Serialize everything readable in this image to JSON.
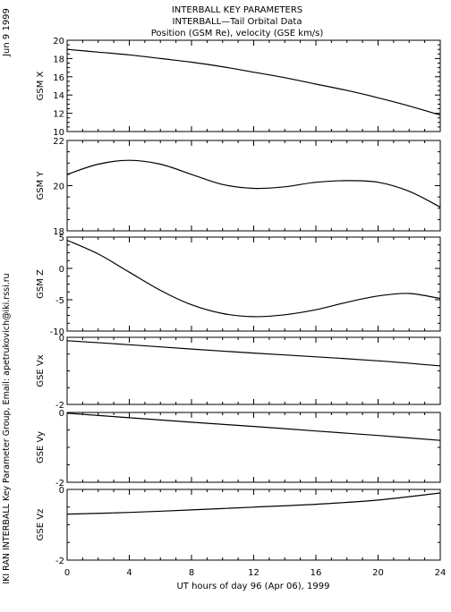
{
  "header": {
    "title_line1": "INTERBALL KEY PARAMETERS",
    "title_line2": "INTERBALL—Tail Orbital Data",
    "title_line3": "Position (GSM Re), velocity (GSE km/s)"
  },
  "side_text": {
    "date": "Jun  9 1999",
    "credit": "IKI RAN INTERBALL Key Parameter Group, Email: apetrukovich@iki.rssi.ru"
  },
  "x_axis": {
    "label": "UT hours of day  96 (Apr 06), 1999",
    "range": [
      0,
      24
    ],
    "ticks": [
      "0",
      "4",
      "8",
      "12",
      "16",
      "20",
      "24"
    ]
  },
  "chart_data": [
    {
      "type": "line",
      "ylabel": "GSM X",
      "ylim": [
        10,
        20
      ],
      "y_ticks": [
        "20",
        "18",
        "16",
        "14",
        "12",
        "10"
      ],
      "x": [
        0,
        2,
        4,
        6,
        8,
        10,
        12,
        14,
        16,
        18,
        20,
        22,
        24
      ],
      "values": [
        19.0,
        18.7,
        18.4,
        18.0,
        17.6,
        17.1,
        16.5,
        15.9,
        15.2,
        14.5,
        13.7,
        12.8,
        11.8
      ]
    },
    {
      "type": "line",
      "ylabel": "GSM Y",
      "ylim": [
        18,
        22
      ],
      "y_ticks": [
        "22",
        "20",
        "18"
      ],
      "x": [
        0,
        2,
        4,
        6,
        8,
        10,
        12,
        14,
        16,
        18,
        20,
        22,
        24
      ],
      "values": [
        20.5,
        20.95,
        21.12,
        20.95,
        20.5,
        20.05,
        19.88,
        19.95,
        20.15,
        20.22,
        20.15,
        19.75,
        19.05
      ]
    },
    {
      "type": "line",
      "ylabel": "GSM Z",
      "ylim": [
        -10,
        5
      ],
      "y_ticks": [
        "5",
        "0",
        "-5",
        "-10"
      ],
      "x": [
        0,
        2,
        4,
        6,
        8,
        10,
        12,
        14,
        16,
        18,
        20,
        22,
        24
      ],
      "values": [
        4.5,
        2.3,
        -0.6,
        -3.5,
        -5.8,
        -7.2,
        -7.7,
        -7.4,
        -6.6,
        -5.4,
        -4.4,
        -4.0,
        -4.8
      ]
    },
    {
      "type": "line",
      "ylabel": "GSE Vx",
      "ylim": [
        -2,
        0
      ],
      "y_ticks": [
        "0",
        "-2"
      ],
      "x": [
        0,
        4,
        8,
        12,
        16,
        20,
        24
      ],
      "values": [
        -0.1,
        -0.22,
        -0.35,
        -0.47,
        -0.58,
        -0.7,
        -0.85
      ]
    },
    {
      "type": "line",
      "ylabel": "GSE Vy",
      "ylim": [
        -2,
        0
      ],
      "y_ticks": [
        "0",
        "-2"
      ],
      "x": [
        0,
        4,
        8,
        12,
        16,
        20,
        24
      ],
      "values": [
        -0.02,
        -0.15,
        -0.28,
        -0.4,
        -0.53,
        -0.66,
        -0.8
      ]
    },
    {
      "type": "line",
      "ylabel": "GSE Vz",
      "ylim": [
        -2,
        0
      ],
      "y_ticks": [
        "0",
        "-2"
      ],
      "x": [
        0,
        4,
        8,
        12,
        16,
        20,
        24
      ],
      "values": [
        -0.7,
        -0.65,
        -0.58,
        -0.5,
        -0.42,
        -0.3,
        -0.1
      ]
    }
  ]
}
